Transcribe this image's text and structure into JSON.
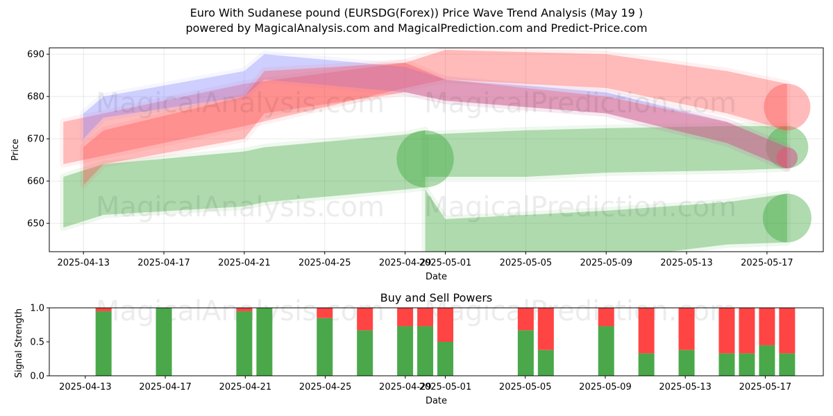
{
  "title_line1": "Euro With Sudanese pound (EURSDG(Forex)) Price Wave Trend Analysis (May 19 )",
  "title_line2": "powered by MagicalAnalysis.com and MagicalPrediction.com and Predict-Price.com",
  "watermarks": [
    "MagicalAnalysis.com",
    "MagicalPrediction.com"
  ],
  "colors": {
    "green": "#2ca02c",
    "red": "#ff4d4d",
    "blue": "#8080ff",
    "buy": "#4aa84a",
    "sell": "#ff4444"
  },
  "chart_data": [
    {
      "type": "area",
      "title": "",
      "xlabel": "Date",
      "ylabel": "Price",
      "ylim": [
        643.3,
        691.5
      ],
      "xlim": [
        "2025-04-11.3",
        "2025-05-19.8"
      ],
      "x_ticks": [
        "2025-04-13",
        "2025-04-17",
        "2025-04-21",
        "2025-04-25",
        "2025-04-29",
        "2025-05-01",
        "2025-05-05",
        "2025-05-09",
        "2025-05-13",
        "2025-05-17"
      ],
      "y_ticks": [
        650,
        660,
        670,
        680,
        690
      ],
      "grid": true,
      "series": [
        {
          "color": "green",
          "x": [
            "2025-04-12",
            "2025-04-14",
            "2025-04-21",
            "2025-04-22",
            "2025-04-29",
            "2025-04-30"
          ],
          "lower": [
            649,
            652,
            654,
            655,
            658,
            658.5
          ],
          "upper": [
            661,
            664,
            667,
            668,
            671,
            672
          ]
        },
        {
          "color": "green",
          "x": [
            "2025-04-30",
            "2025-05-05",
            "2025-05-09",
            "2025-05-15",
            "2025-05-18"
          ],
          "lower": [
            661,
            661,
            662,
            662.5,
            663
          ],
          "upper": [
            671,
            672,
            672.5,
            673,
            673
          ]
        },
        {
          "color": "green",
          "x": [
            "2025-04-30",
            "2025-05-01",
            "2025-05-05",
            "2025-05-09",
            "2025-05-15",
            "2025-05-18"
          ],
          "lower": [
            641,
            641,
            641,
            641.5,
            645,
            645.5
          ],
          "upper": [
            658,
            651,
            652,
            653,
            655,
            657
          ]
        },
        {
          "color": "red",
          "x": [
            "2025-04-12",
            "2025-04-14",
            "2025-04-21",
            "2025-04-29",
            "2025-05-01",
            "2025-05-09",
            "2025-05-15",
            "2025-05-18"
          ],
          "lower": [
            664,
            666,
            673,
            682,
            684,
            682,
            676,
            672
          ],
          "upper": [
            674,
            676,
            683,
            688,
            691,
            690,
            686,
            683
          ]
        },
        {
          "color": "blue",
          "x": [
            "2025-04-13",
            "2025-04-14",
            "2025-04-21",
            "2025-04-22",
            "2025-04-29",
            "2025-05-01",
            "2025-05-09",
            "2025-05-15",
            "2025-05-18"
          ],
          "lower": [
            670,
            675,
            680,
            684,
            681,
            679,
            676,
            669,
            663
          ],
          "upper": [
            676,
            680,
            686,
            690,
            687,
            684,
            681,
            674,
            668
          ]
        },
        {
          "color": "red",
          "x": [
            "2025-04-13",
            "2025-04-14",
            "2025-04-21",
            "2025-04-22",
            "2025-04-29",
            "2025-05-01",
            "2025-05-09",
            "2025-05-15",
            "2025-05-18"
          ],
          "lower": [
            659,
            664,
            670,
            676,
            681,
            679,
            676,
            669,
            663
          ],
          "upper": [
            668,
            672,
            680,
            686,
            688,
            684,
            680,
            674,
            668
          ]
        }
      ]
    },
    {
      "type": "bar",
      "title": "Buy and Sell Powers",
      "xlabel": "Date",
      "ylabel": "Signal Strength",
      "ylim": [
        0,
        1.0
      ],
      "y_ticks": [
        0.0,
        0.5,
        1.0
      ],
      "x_ticks": [
        "2025-04-13",
        "2025-04-17",
        "2025-04-21",
        "2025-04-25",
        "2025-04-29",
        "2025-05-01",
        "2025-05-05",
        "2025-05-09",
        "2025-05-13",
        "2025-05-17"
      ],
      "categories": [
        "2025-04-14",
        "2025-04-17",
        "2025-04-21",
        "2025-04-22",
        "2025-04-25",
        "2025-04-27",
        "2025-04-29",
        "2025-04-30",
        "2025-05-01",
        "2025-05-05",
        "2025-05-06",
        "2025-05-09",
        "2025-05-11",
        "2025-05-13",
        "2025-05-15",
        "2025-05-16",
        "2025-05-17",
        "2025-05-18"
      ],
      "series": [
        {
          "name": "Buy",
          "values": [
            0.95,
            1.0,
            0.95,
            1.0,
            0.85,
            0.67,
            0.73,
            0.73,
            0.5,
            0.67,
            0.38,
            0.73,
            0.33,
            0.38,
            0.33,
            0.33,
            0.45,
            0.33
          ]
        },
        {
          "name": "Sell",
          "values": [
            0.05,
            0.0,
            0.05,
            0.0,
            0.15,
            0.33,
            0.27,
            0.27,
            0.5,
            0.33,
            0.62,
            0.27,
            0.67,
            0.62,
            0.67,
            0.67,
            0.55,
            0.67
          ]
        }
      ]
    }
  ]
}
